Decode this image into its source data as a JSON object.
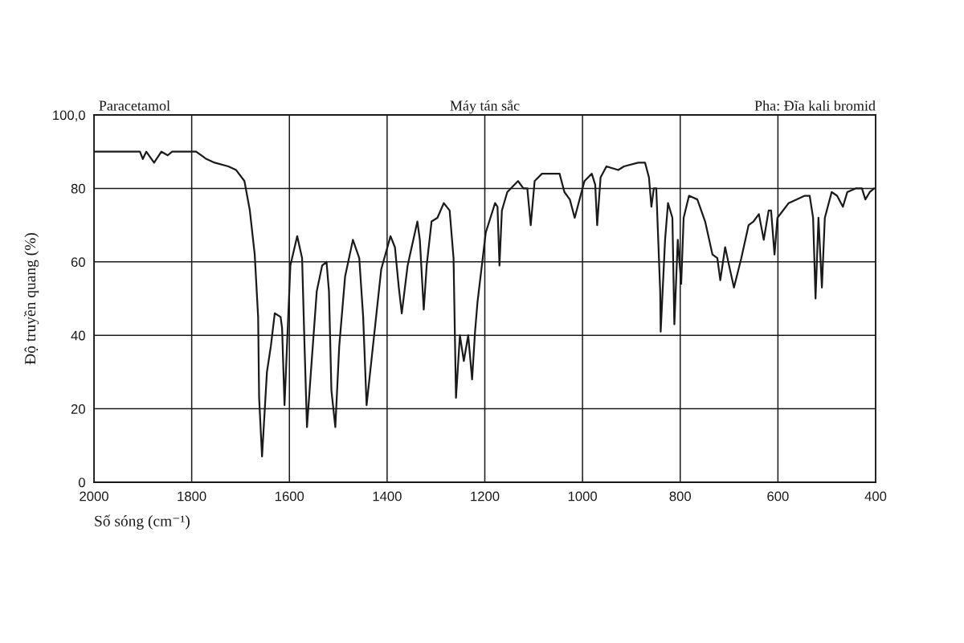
{
  "chart_data": {
    "type": "line",
    "title": "Paracetamol",
    "annotations": [
      "Máy tán sắc",
      "Pha: Đĩa kali bromid"
    ],
    "xlabel": "Số sóng (cm⁻¹)",
    "ylabel": "Độ truyền quang (%)",
    "x": [
      2000,
      1950,
      1906,
      1900,
      1893,
      1877,
      1862,
      1849,
      1840,
      1791,
      1770,
      1753,
      1725,
      1709,
      1692,
      1681,
      1671,
      1664,
      1662,
      1656,
      1646,
      1638,
      1630,
      1618,
      1615,
      1610,
      1598,
      1584,
      1574,
      1569,
      1564,
      1556,
      1544,
      1533,
      1524,
      1519,
      1514,
      1506,
      1498,
      1486,
      1470,
      1457,
      1449,
      1442,
      1429,
      1412,
      1393,
      1384,
      1376,
      1370,
      1358,
      1338,
      1333,
      1325,
      1319,
      1309,
      1297,
      1284,
      1272,
      1264,
      1259,
      1251,
      1243,
      1234,
      1226,
      1220,
      1215,
      1198,
      1179,
      1174,
      1170,
      1165,
      1154,
      1132,
      1121,
      1113,
      1106,
      1098,
      1083,
      1062,
      1047,
      1037,
      1026,
      1016,
      1004,
      996,
      981,
      974,
      970,
      963,
      951,
      927,
      915,
      886,
      872,
      864,
      859,
      854,
      849,
      841,
      840,
      831,
      825,
      816,
      812,
      805,
      798,
      793,
      782,
      765,
      749,
      734,
      724,
      718,
      708,
      700,
      690,
      675,
      660,
      650,
      639,
      629,
      619,
      614,
      607,
      601,
      578,
      545,
      535,
      528,
      523,
      517,
      510,
      504,
      490,
      479,
      467,
      458,
      441,
      428,
      421,
      412,
      403
    ],
    "series": [
      {
        "color": "#1a1a1a",
        "values": [
          90,
          90,
          90,
          88,
          90,
          87,
          90,
          89,
          90,
          90,
          88,
          87,
          86,
          85,
          82,
          74,
          62,
          45,
          23,
          7,
          30,
          37,
          46,
          45,
          42,
          21,
          59,
          67,
          61,
          37,
          15,
          30,
          52,
          59,
          60,
          52,
          25,
          15,
          37,
          56,
          66,
          61,
          45,
          21,
          37,
          58,
          67,
          64,
          53,
          46,
          59,
          71,
          66,
          47,
          59,
          71,
          72,
          76,
          74,
          61,
          23,
          40,
          33,
          40,
          28,
          41,
          49,
          68,
          76,
          75,
          59,
          74,
          79,
          82,
          80,
          80,
          70,
          82,
          84,
          84,
          84,
          79,
          77,
          72,
          78,
          82,
          84,
          81,
          70,
          83,
          86,
          85,
          86,
          87,
          87,
          83,
          75,
          80,
          80,
          52,
          41,
          66,
          76,
          72,
          43,
          66,
          54,
          72,
          78,
          77,
          71,
          62,
          61,
          55,
          64,
          59,
          53,
          61,
          70,
          71,
          73,
          66,
          74,
          74,
          62,
          72,
          76,
          78,
          78,
          72,
          50,
          72,
          53,
          72,
          79,
          78,
          75,
          79,
          80,
          80,
          77,
          79,
          80
        ]
      }
    ],
    "xlim": [
      2000,
      400
    ],
    "xticks": [
      2000,
      1800,
      1600,
      1400,
      1200,
      1000,
      800,
      600,
      400
    ],
    "ylim": [
      0,
      100
    ],
    "yticks": [
      0,
      20,
      40,
      60,
      80,
      {
        "value": 100,
        "label": "100,0"
      }
    ],
    "grid": true
  }
}
